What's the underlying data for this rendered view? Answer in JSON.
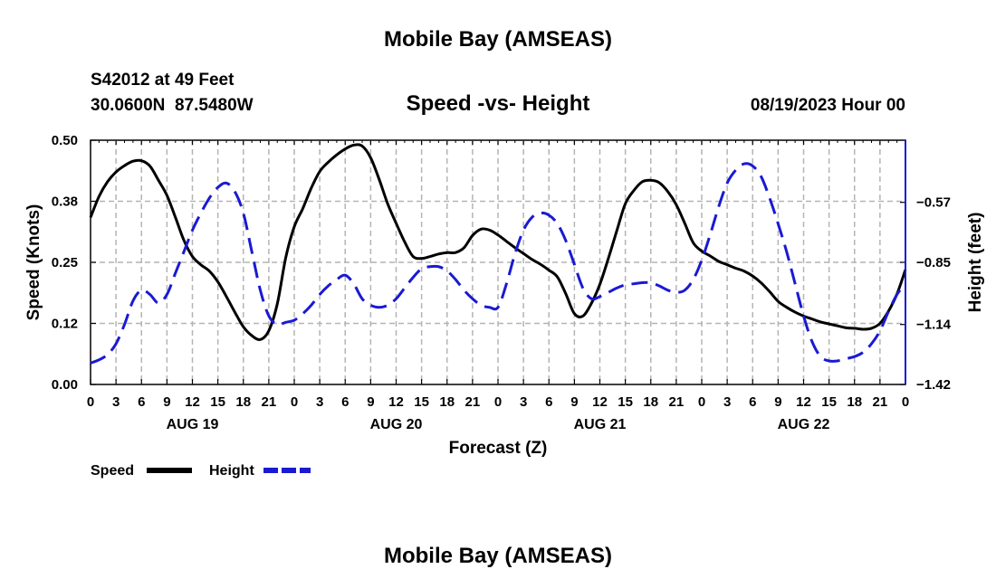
{
  "page": {
    "title_top": "Mobile Bay (AMSEAS)",
    "title_bottom": "Mobile Bay (AMSEAS)",
    "station": "S42012 at 49 Feet",
    "coords": "30.0600N  87.5480W",
    "chart_title": "Speed -vs- Height",
    "date": "08/19/2023 Hour 00"
  },
  "colors": {
    "speed": "#000000",
    "height": "#1a1ad2",
    "grid": "#b4b4b4"
  },
  "chart_data": {
    "type": "line",
    "title": "Speed -vs- Height",
    "xlabel": "Forecast (Z)",
    "ylabel": "Speed (Knots)",
    "y2label": "Height (feet)",
    "xlim": [
      0,
      96
    ],
    "ylim": [
      0,
      0.5
    ],
    "y2lim": [
      -1.42,
      -0.28
    ],
    "y_ticks": [
      0.0,
      0.125,
      0.25,
      0.375,
      0.5
    ],
    "y_tick_labels": [
      "0.00",
      "0.12",
      "0.25",
      "0.38",
      "0.50"
    ],
    "y2_ticks": [
      -1.42,
      -1.14,
      -0.85,
      -0.57
    ],
    "y2_tick_labels": [
      "−1.42",
      "−1.14",
      "−0.85",
      "−0.57"
    ],
    "x_ticks": [
      0,
      3,
      6,
      9,
      12,
      15,
      18,
      21,
      24,
      27,
      30,
      33,
      36,
      39,
      42,
      45,
      48,
      51,
      54,
      57,
      60,
      63,
      66,
      69,
      72,
      75,
      78,
      81,
      84,
      87,
      90,
      93,
      96
    ],
    "x_tick_labels": [
      "0",
      "3",
      "6",
      "9",
      "12",
      "15",
      "18",
      "21",
      "0",
      "3",
      "6",
      "9",
      "12",
      "15",
      "18",
      "21",
      "0",
      "3",
      "6",
      "9",
      "12",
      "15",
      "18",
      "21",
      "0",
      "3",
      "6",
      "9",
      "12",
      "15",
      "18",
      "21",
      "0"
    ],
    "day_labels": [
      {
        "x": 12,
        "label": "AUG 19"
      },
      {
        "x": 36,
        "label": "AUG 20"
      },
      {
        "x": 60,
        "label": "AUG 21"
      },
      {
        "x": 84,
        "label": "AUG 22"
      }
    ],
    "grid": true,
    "legend": [
      "Speed",
      "Height"
    ],
    "legend_position": "bottom-left",
    "series": [
      {
        "name": "Speed",
        "axis": "left",
        "style": "solid",
        "x": [
          0,
          1,
          2,
          3,
          4,
          5,
          6,
          7,
          8,
          9,
          10,
          11,
          12,
          13,
          14,
          15,
          16,
          17,
          18,
          19,
          20,
          21,
          22,
          23,
          24,
          25,
          26,
          27,
          28,
          29,
          30,
          31,
          32,
          33,
          34,
          35,
          36,
          37,
          38,
          39,
          40,
          41,
          42,
          43,
          44,
          45,
          46,
          47,
          48,
          49,
          50,
          51,
          52,
          53,
          54,
          55,
          56,
          57,
          58,
          59,
          60,
          61,
          62,
          63,
          64,
          65,
          66,
          67,
          68,
          69,
          70,
          71,
          72,
          73,
          74,
          75,
          76,
          77,
          78,
          79,
          80,
          81,
          82,
          83,
          84,
          85,
          86,
          87,
          88,
          89,
          90,
          91,
          92,
          93,
          94,
          95,
          96
        ],
        "values": [
          0.342,
          0.385,
          0.415,
          0.435,
          0.448,
          0.457,
          0.458,
          0.447,
          0.418,
          0.387,
          0.342,
          0.295,
          0.262,
          0.245,
          0.232,
          0.21,
          0.18,
          0.148,
          0.118,
          0.1,
          0.092,
          0.11,
          0.165,
          0.26,
          0.323,
          0.36,
          0.402,
          0.436,
          0.455,
          0.47,
          0.482,
          0.49,
          0.488,
          0.464,
          0.42,
          0.37,
          0.33,
          0.292,
          0.262,
          0.258,
          0.262,
          0.267,
          0.27,
          0.27,
          0.28,
          0.305,
          0.318,
          0.316,
          0.306,
          0.293,
          0.28,
          0.268,
          0.256,
          0.246,
          0.234,
          0.22,
          0.185,
          0.145,
          0.14,
          0.166,
          0.205,
          0.258,
          0.315,
          0.37,
          0.397,
          0.415,
          0.418,
          0.413,
          0.395,
          0.368,
          0.33,
          0.29,
          0.273,
          0.263,
          0.252,
          0.245,
          0.238,
          0.232,
          0.222,
          0.208,
          0.19,
          0.17,
          0.158,
          0.148,
          0.14,
          0.134,
          0.128,
          0.124,
          0.12,
          0.116,
          0.115,
          0.113,
          0.115,
          0.125,
          0.15,
          0.185,
          0.235
        ]
      },
      {
        "name": "Height",
        "axis": "right",
        "style": "dashed",
        "x": [
          0,
          1,
          2,
          3,
          4,
          5,
          6,
          7,
          8,
          9,
          10,
          11,
          12,
          13,
          14,
          15,
          16,
          17,
          18,
          19,
          20,
          21,
          22,
          23,
          24,
          25,
          26,
          27,
          28,
          29,
          30,
          31,
          32,
          33,
          34,
          35,
          36,
          37,
          38,
          39,
          40,
          41,
          42,
          43,
          44,
          45,
          46,
          47,
          48,
          49,
          50,
          51,
          52,
          53,
          54,
          55,
          56,
          57,
          58,
          59,
          60,
          61,
          62,
          63,
          64,
          65,
          66,
          67,
          68,
          69,
          70,
          71,
          72,
          73,
          74,
          75,
          76,
          77,
          78,
          79,
          80,
          81,
          82,
          83,
          84,
          85,
          86,
          87,
          88,
          89,
          90,
          91,
          92,
          93,
          94,
          95,
          96
        ],
        "values": [
          -1.32,
          -1.305,
          -1.28,
          -1.23,
          -1.14,
          -1.03,
          -0.98,
          -1.0,
          -1.04,
          -1.0,
          -0.9,
          -0.8,
          -0.7,
          -0.62,
          -0.55,
          -0.5,
          -0.48,
          -0.52,
          -0.62,
          -0.8,
          -0.98,
          -1.1,
          -1.14,
          -1.13,
          -1.12,
          -1.09,
          -1.05,
          -1.0,
          -0.96,
          -0.93,
          -0.91,
          -0.95,
          -1.02,
          -1.05,
          -1.06,
          -1.05,
          -1.02,
          -0.97,
          -0.92,
          -0.88,
          -0.87,
          -0.87,
          -0.89,
          -0.93,
          -0.98,
          -1.02,
          -1.05,
          -1.06,
          -1.06,
          -0.95,
          -0.81,
          -0.7,
          -0.64,
          -0.62,
          -0.63,
          -0.67,
          -0.75,
          -0.86,
          -0.97,
          -1.02,
          -1.01,
          -0.99,
          -0.97,
          -0.955,
          -0.95,
          -0.945,
          -0.945,
          -0.96,
          -0.98,
          -0.99,
          -0.98,
          -0.93,
          -0.84,
          -0.72,
          -0.59,
          -0.48,
          -0.42,
          -0.39,
          -0.4,
          -0.45,
          -0.55,
          -0.67,
          -0.8,
          -0.95,
          -1.1,
          -1.22,
          -1.29,
          -1.31,
          -1.31,
          -1.3,
          -1.29,
          -1.27,
          -1.23,
          -1.17,
          -1.08,
          -1.0,
          -0.95
        ]
      }
    ]
  }
}
